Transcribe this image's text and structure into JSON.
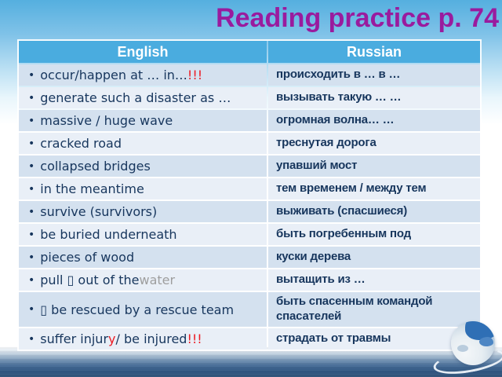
{
  "title": "Reading practice p. 74",
  "colors": {
    "title": "#9A1B9E",
    "header_bg": "#4AACDF",
    "row_odd": "#D4E1EF",
    "row_even": "#E9EFF7",
    "text_dark": "#17365D",
    "red": "#ED1C24",
    "gray": "#9E9E9E"
  },
  "table": {
    "bullet": "•",
    "headers": [
      "English",
      "Russian"
    ],
    "rows": [
      {
        "en": [
          {
            "t": "occur/happen at … in… "
          },
          {
            "t": "!!!",
            "c": "red"
          }
        ],
        "ru": "происходить  в … в …"
      },
      {
        "en": [
          {
            "t": "generate such a disaster as …"
          }
        ],
        "ru": "вызывать такую … …"
      },
      {
        "en": [
          {
            "t": "massive / huge wave"
          }
        ],
        "ru": "огромная волна… …"
      },
      {
        "en": [
          {
            "t": "cracked road"
          }
        ],
        "ru": "треснутая дорога"
      },
      {
        "en": [
          {
            "t": "collapsed bridges"
          }
        ],
        "ru": "упавший мост"
      },
      {
        "en": [
          {
            "t": "in the meantime"
          }
        ],
        "ru": "тем временем / между тем"
      },
      {
        "en": [
          {
            "t": "survive (survivors)"
          }
        ],
        "ru": "выживать (спасшиеся)"
      },
      {
        "en": [
          {
            "t": "be buried underneath"
          }
        ],
        "ru": "быть погребенным под"
      },
      {
        "en": [
          {
            "t": "pieces of wood"
          }
        ],
        "ru": "куски дерева"
      },
      {
        "en": [
          {
            "t": "pull ▯ out of the "
          },
          {
            "t": "water",
            "c": "gray"
          }
        ],
        "ru": "вытащить из …"
      },
      {
        "en": [
          {
            "t": "▯ be rescued by a rescue team"
          }
        ],
        "ru": "быть спасенным командой спасателей",
        "tall": true
      },
      {
        "en": [
          {
            "t": "suffer injur"
          },
          {
            "t": "y",
            "c": "red"
          },
          {
            "t": " / be injured "
          },
          {
            "t": "!!!",
            "c": "red"
          }
        ],
        "ru": "страдать от травмы"
      }
    ]
  }
}
